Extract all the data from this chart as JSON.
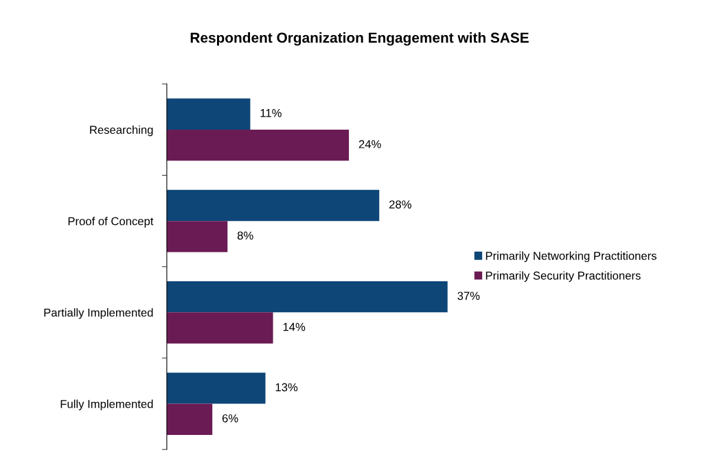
{
  "chart_data": {
    "type": "bar",
    "orientation": "horizontal",
    "title": "Respondent Organization Engagement with SASE",
    "categories": [
      "Researching",
      "Proof of Concept",
      "Partially Implemented",
      "Fully Implemented"
    ],
    "series": [
      {
        "name": "Primarily Networking Practitioners",
        "color": "#0e4677",
        "values": [
          11,
          28,
          37,
          13
        ],
        "value_labels": [
          "11%",
          "28%",
          "37%",
          "13%"
        ]
      },
      {
        "name": "Primarily Security Practitioners",
        "color": "#6a1b54",
        "values": [
          24,
          8,
          14,
          6
        ],
        "value_labels": [
          "24%",
          "8%",
          "14%",
          "6%"
        ]
      }
    ],
    "tick_labels": "y",
    "legend": "right",
    "grid": false
  }
}
